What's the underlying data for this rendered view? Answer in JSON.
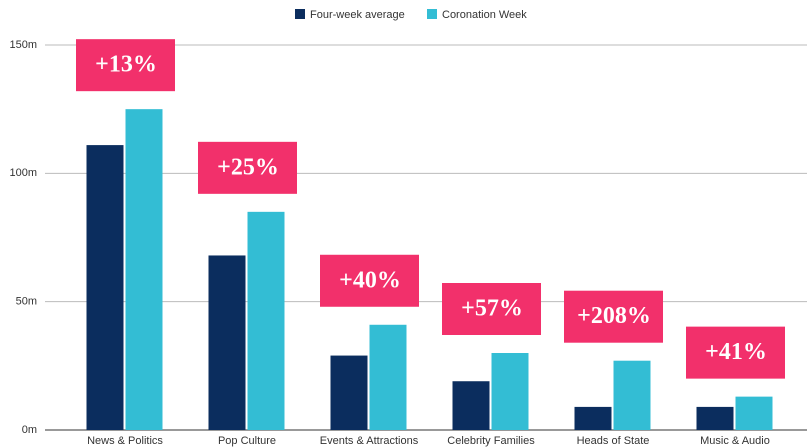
{
  "chart_data": {
    "type": "bar",
    "categories": [
      "News & Politics",
      "Pop Culture",
      "Events & Attractions",
      "Celebrity Families",
      "Heads of State",
      "Music & Audio"
    ],
    "series": [
      {
        "name": "Four-week average",
        "color": "#0b2d5e",
        "values": [
          111,
          68,
          29,
          19,
          9,
          9
        ]
      },
      {
        "name": "Coronation Week",
        "color": "#33bdd4",
        "values": [
          125,
          85,
          41,
          30,
          27,
          13
        ]
      }
    ],
    "annotations": [
      "+13%",
      "+25%",
      "+40%",
      "+57%",
      "+208%",
      "+41%"
    ],
    "annotation_color": "#f2306b",
    "ylim": [
      0,
      150
    ],
    "yticks": [
      {
        "value": 0,
        "label": "0m"
      },
      {
        "value": 50,
        "label": "50m"
      },
      {
        "value": 100,
        "label": "100m"
      },
      {
        "value": 150,
        "label": "150m"
      }
    ],
    "grid": true,
    "legend": "top"
  }
}
